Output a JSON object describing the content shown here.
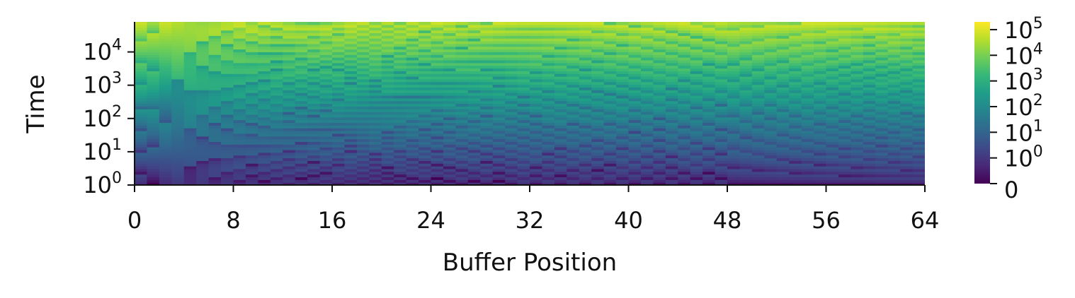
{
  "chart_data": {
    "type": "heatmap",
    "title": "",
    "xlabel": "Buffer Position",
    "ylabel": "Time",
    "x_scale": "linear",
    "y_scale": "log",
    "xlim": [
      0,
      64
    ],
    "ylim": [
      1,
      80000
    ],
    "x_ticks": [
      {
        "value": 0,
        "label": "0"
      },
      {
        "value": 8,
        "label": "8"
      },
      {
        "value": 16,
        "label": "16"
      },
      {
        "value": 24,
        "label": "24"
      },
      {
        "value": 32,
        "label": "32"
      },
      {
        "value": 40,
        "label": "40"
      },
      {
        "value": 48,
        "label": "48"
      },
      {
        "value": 56,
        "label": "56"
      },
      {
        "value": 64,
        "label": "64"
      }
    ],
    "y_ticks": [
      {
        "value": 1,
        "base": "10",
        "exp": "0"
      },
      {
        "value": 10,
        "base": "10",
        "exp": "1"
      },
      {
        "value": 100,
        "base": "10",
        "exp": "2"
      },
      {
        "value": 1000,
        "base": "10",
        "exp": "3"
      },
      {
        "value": 10000,
        "base": "10",
        "exp": "4"
      }
    ],
    "colorbar": {
      "colormap": "viridis",
      "scale": "symlog",
      "range": [
        0,
        200000
      ],
      "ticks": [
        {
          "value": 0,
          "base": "0",
          "exp": ""
        },
        {
          "value": 1,
          "base": "10",
          "exp": "0"
        },
        {
          "value": 10,
          "base": "10",
          "exp": "1"
        },
        {
          "value": 100,
          "base": "10",
          "exp": "2"
        },
        {
          "value": 1000,
          "base": "10",
          "exp": "3"
        },
        {
          "value": 10000,
          "base": "10",
          "exp": "4"
        },
        {
          "value": 100000,
          "base": "10",
          "exp": "5"
        }
      ]
    },
    "grid": false,
    "legend": "colorbar-right",
    "cells": {
      "columns": 64,
      "value_at_cell": "elapsed time since the buffer position was last written (sawtooth pattern); positions 48-64 show smooth diagonal bands"
    }
  }
}
